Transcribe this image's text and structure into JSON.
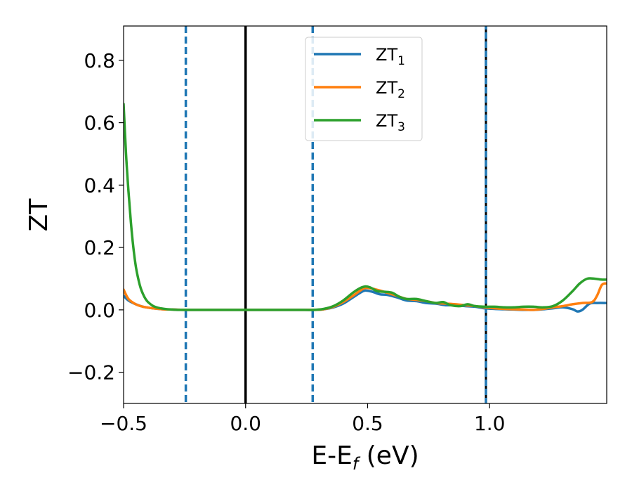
{
  "chart_data": {
    "type": "line",
    "xlabel": "E-E",
    "xlabel_sub": "f",
    "xlabel_unit": " (eV)",
    "ylabel": "ZT",
    "xlim": [
      -0.5,
      1.48
    ],
    "ylim": [
      -0.3,
      0.91
    ],
    "xticks": [
      -0.5,
      0.0,
      0.5,
      1.0
    ],
    "xtick_labels": [
      "−0.5",
      "0.0",
      "0.5",
      "1.0"
    ],
    "yticks": [
      -0.2,
      0.0,
      0.2,
      0.4,
      0.6,
      0.8
    ],
    "ytick_labels": [
      "−0.2",
      "0.0",
      "0.2",
      "0.4",
      "0.6",
      "0.8"
    ],
    "grid": false,
    "legend_position": "top-center",
    "vlines": [
      {
        "x": -0.245,
        "style": "dashed",
        "color": "#1f77b4"
      },
      {
        "x": 0.0,
        "style": "solid",
        "color": "#000000"
      },
      {
        "x": 0.275,
        "style": "dashed",
        "color": "#1f77b4"
      },
      {
        "x": 0.985,
        "style": "dashed-overlay",
        "color": "#1f77b4"
      }
    ],
    "series": [
      {
        "name": "ZT",
        "sub": "1",
        "color": "#1f77b4",
        "x": [
          -0.5,
          -0.48,
          -0.45,
          -0.42,
          -0.38,
          -0.34,
          -0.3,
          -0.25,
          -0.2,
          0.0,
          0.2,
          0.28,
          0.32,
          0.36,
          0.4,
          0.44,
          0.47,
          0.49,
          0.52,
          0.55,
          0.58,
          0.62,
          0.66,
          0.7,
          0.74,
          0.78,
          0.82,
          0.86,
          0.9,
          0.94,
          0.98,
          1.02,
          1.06,
          1.1,
          1.14,
          1.18,
          1.22,
          1.26,
          1.3,
          1.34,
          1.36,
          1.38,
          1.41,
          1.44,
          1.48
        ],
        "y": [
          0.045,
          0.03,
          0.018,
          0.01,
          0.005,
          0.002,
          0.001,
          0.0,
          0.0,
          0.0,
          0.0,
          0.0,
          0.002,
          0.008,
          0.02,
          0.04,
          0.055,
          0.062,
          0.058,
          0.05,
          0.048,
          0.04,
          0.03,
          0.028,
          0.022,
          0.02,
          0.015,
          0.015,
          0.012,
          0.01,
          0.005,
          0.003,
          0.002,
          0.001,
          0.0,
          0.0,
          0.002,
          0.005,
          0.008,
          0.002,
          -0.005,
          0.0,
          0.02,
          0.022,
          0.022
        ]
      },
      {
        "name": "ZT",
        "sub": "2",
        "color": "#ff7f0e",
        "x": [
          -0.5,
          -0.48,
          -0.45,
          -0.42,
          -0.38,
          -0.34,
          -0.3,
          -0.25,
          -0.2,
          0.0,
          0.2,
          0.28,
          0.32,
          0.36,
          0.4,
          0.44,
          0.47,
          0.49,
          0.52,
          0.55,
          0.58,
          0.62,
          0.66,
          0.7,
          0.74,
          0.78,
          0.82,
          0.86,
          0.9,
          0.94,
          0.98,
          1.02,
          1.06,
          1.1,
          1.14,
          1.18,
          1.22,
          1.26,
          1.3,
          1.34,
          1.38,
          1.42,
          1.44,
          1.46,
          1.48
        ],
        "y": [
          0.065,
          0.035,
          0.018,
          0.01,
          0.005,
          0.002,
          0.001,
          0.0,
          0.0,
          0.0,
          0.0,
          0.0,
          0.002,
          0.01,
          0.025,
          0.045,
          0.062,
          0.07,
          0.068,
          0.062,
          0.055,
          0.045,
          0.035,
          0.032,
          0.028,
          0.022,
          0.02,
          0.018,
          0.015,
          0.012,
          0.008,
          0.005,
          0.003,
          0.002,
          0.001,
          0.0,
          0.003,
          0.008,
          0.012,
          0.018,
          0.022,
          0.025,
          0.045,
          0.08,
          0.085
        ]
      },
      {
        "name": "ZT",
        "sub": "3",
        "color": "#2ca02c",
        "x": [
          -0.5,
          -0.49,
          -0.48,
          -0.47,
          -0.46,
          -0.45,
          -0.44,
          -0.43,
          -0.42,
          -0.41,
          -0.4,
          -0.38,
          -0.36,
          -0.34,
          -0.32,
          -0.3,
          -0.28,
          -0.25,
          -0.2,
          0.0,
          0.2,
          0.28,
          0.32,
          0.36,
          0.4,
          0.44,
          0.47,
          0.49,
          0.51,
          0.54,
          0.57,
          0.6,
          0.63,
          0.66,
          0.7,
          0.74,
          0.78,
          0.81,
          0.84,
          0.88,
          0.91,
          0.94,
          0.98,
          1.02,
          1.06,
          1.1,
          1.14,
          1.18,
          1.22,
          1.26,
          1.3,
          1.34,
          1.37,
          1.4,
          1.43,
          1.46,
          1.48
        ],
        "y": [
          0.66,
          0.5,
          0.38,
          0.28,
          0.2,
          0.14,
          0.1,
          0.07,
          0.05,
          0.035,
          0.025,
          0.013,
          0.007,
          0.004,
          0.002,
          0.001,
          0.0,
          0.0,
          0.0,
          0.0,
          0.0,
          0.0,
          0.003,
          0.012,
          0.03,
          0.055,
          0.07,
          0.075,
          0.072,
          0.06,
          0.058,
          0.055,
          0.042,
          0.035,
          0.035,
          0.028,
          0.022,
          0.025,
          0.015,
          0.012,
          0.018,
          0.012,
          0.01,
          0.01,
          0.008,
          0.008,
          0.01,
          0.01,
          0.008,
          0.012,
          0.03,
          0.06,
          0.085,
          0.1,
          0.1,
          0.097,
          0.097
        ]
      }
    ]
  }
}
